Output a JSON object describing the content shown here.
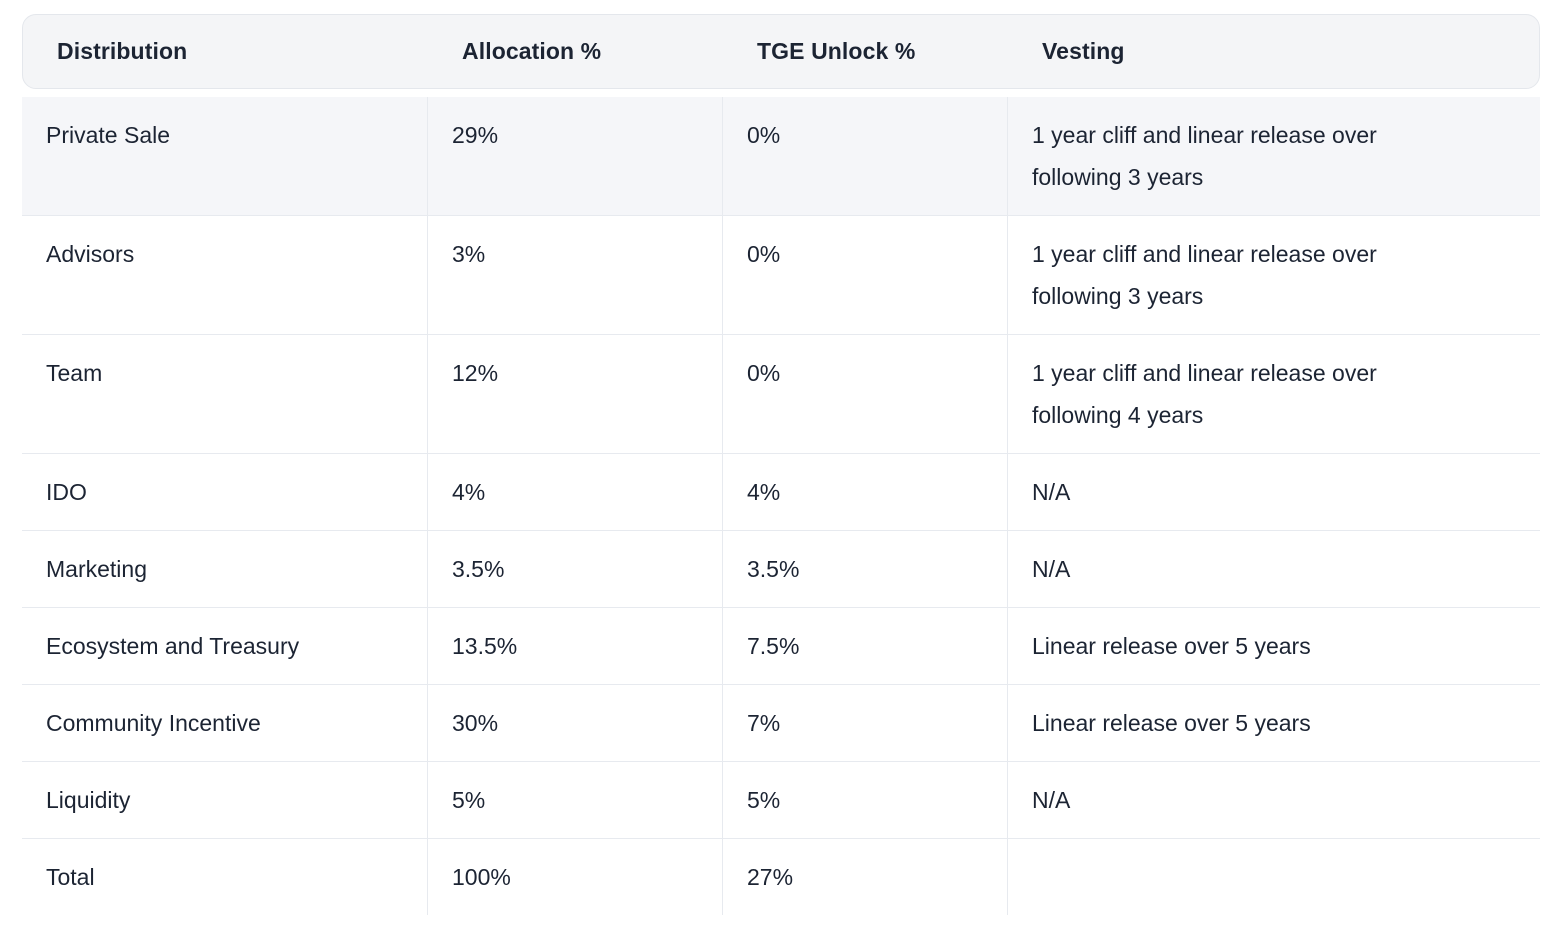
{
  "table": {
    "columns": [
      {
        "label": "Distribution"
      },
      {
        "label": "Allocation %"
      },
      {
        "label": "TGE Unlock %"
      },
      {
        "label": "Vesting"
      }
    ],
    "rows": [
      {
        "distribution": "Private Sale",
        "allocation": "29%",
        "tge_unlock": "0%",
        "vesting": "1 year cliff and linear release over\nfollowing 3 years",
        "highlighted": true
      },
      {
        "distribution": "Advisors",
        "allocation": "3%",
        "tge_unlock": "0%",
        "vesting": "1 year cliff and linear release over\nfollowing 3 years",
        "highlighted": false
      },
      {
        "distribution": "Team",
        "allocation": "12%",
        "tge_unlock": "0%",
        "vesting": "1 year cliff and linear release over\nfollowing 4 years",
        "highlighted": false
      },
      {
        "distribution": "IDO",
        "allocation": "4%",
        "tge_unlock": "4%",
        "vesting": "N/A",
        "highlighted": false
      },
      {
        "distribution": "Marketing",
        "allocation": "3.5%",
        "tge_unlock": "3.5%",
        "vesting": "N/A",
        "highlighted": false
      },
      {
        "distribution": "Ecosystem and Treasury",
        "allocation": "13.5%",
        "tge_unlock": "7.5%",
        "vesting": "Linear release over 5 years",
        "highlighted": false
      },
      {
        "distribution": "Community Incentive",
        "allocation": "30%",
        "tge_unlock": "7%",
        "vesting": "Linear release over 5 years",
        "highlighted": false
      },
      {
        "distribution": "Liquidity",
        "allocation": "5%",
        "tge_unlock": "5%",
        "vesting": "N/A",
        "highlighted": false
      },
      {
        "distribution": "Total",
        "allocation": "100%",
        "tge_unlock": "27%",
        "vesting": "",
        "highlighted": false
      }
    ]
  },
  "colors": {
    "text": "#1c2433",
    "header_bg": "#f4f5f7",
    "header_border": "#e4e7ec",
    "row_highlight_bg": "#f5f6f9",
    "divider": "#e7eaef",
    "page_bg": "#ffffff"
  }
}
